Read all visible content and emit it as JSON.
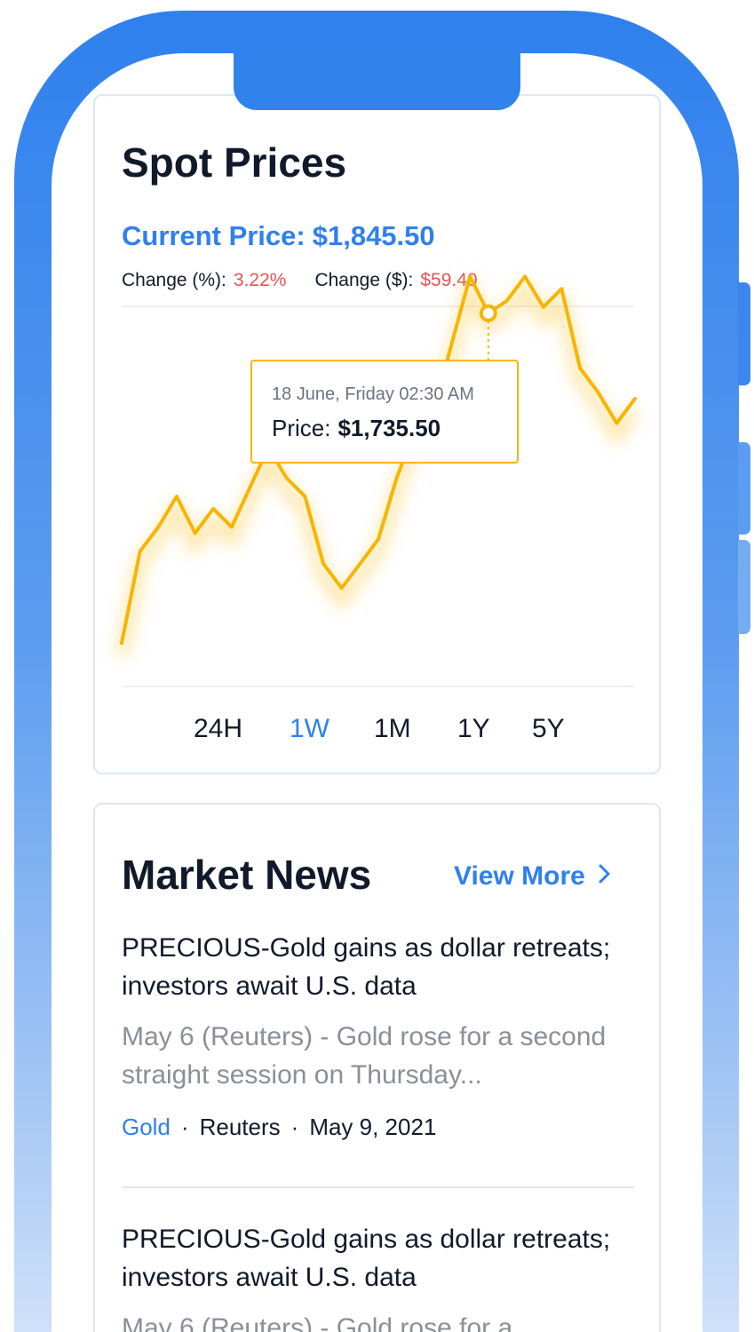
{
  "spot": {
    "title": "Spot Prices",
    "current_label": "Current Price:",
    "current_value": "$1,845.50",
    "change_pct_label": "Change (%):",
    "change_pct_value": "3.22%",
    "change_usd_label": "Change ($):",
    "change_usd_value": "$59.40",
    "tooltip": {
      "date": "18 June, Friday 02:30 AM",
      "price_label": "Price:",
      "price_value": "$1,735.50"
    },
    "ranges": [
      "24H",
      "1W",
      "1M",
      "1Y",
      "5Y"
    ],
    "active_range": "1W"
  },
  "chart_data": {
    "type": "line",
    "title": "",
    "xlabel": "",
    "ylabel": "",
    "x": [
      0,
      1,
      2,
      3,
      4,
      5,
      6,
      7,
      8,
      9,
      10,
      11,
      12,
      13,
      14,
      15,
      16,
      17,
      18,
      19,
      20,
      21,
      22,
      23,
      24,
      25,
      26,
      27,
      28
    ],
    "values": [
      0.04,
      0.34,
      0.42,
      0.52,
      0.4,
      0.48,
      0.42,
      0.55,
      0.68,
      0.58,
      0.52,
      0.3,
      0.22,
      0.3,
      0.38,
      0.58,
      0.74,
      0.8,
      1.02,
      1.24,
      1.12,
      1.16,
      1.24,
      1.14,
      1.2,
      0.94,
      0.86,
      0.76,
      0.84
    ],
    "highlight_index": 20,
    "line_color": "#f7b500",
    "grid": false
  },
  "news": {
    "title": "Market News",
    "view_more": "View More",
    "articles": [
      {
        "headline": "PRECIOUS-Gold gains as dollar retreats; investors await U.S. data",
        "excerpt": "May 6 (Reuters) - Gold rose for a second straight session on Thursday...",
        "tag": "Gold",
        "source": "Reuters",
        "date": "May 9, 2021"
      },
      {
        "headline": "PRECIOUS-Gold gains as dollar retreats; investors await U.S. data",
        "excerpt": "May 6 (Reuters) - Gold rose for a"
      }
    ]
  },
  "colors": {
    "accent": "#2f80ed",
    "negative": "#e25555",
    "chart_line": "#f7b500"
  }
}
